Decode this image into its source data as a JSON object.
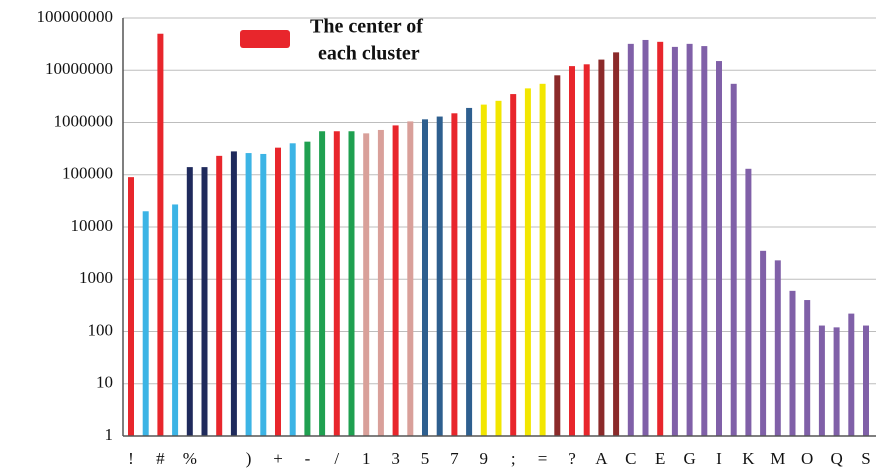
{
  "chart_data": {
    "type": "bar",
    "log_scale": true,
    "grid": true,
    "categories": [
      "!",
      null,
      "#",
      null,
      "%",
      null,
      null,
      null,
      ")",
      null,
      "+",
      null,
      "-",
      null,
      "/",
      null,
      "1",
      null,
      "3",
      null,
      "5",
      null,
      "7",
      null,
      "9",
      null,
      ";",
      null,
      "=",
      null,
      "?",
      null,
      "A",
      null,
      "C",
      null,
      "E",
      null,
      "G",
      null,
      "I",
      null,
      "K",
      null,
      "M",
      null,
      "O",
      null,
      "Q",
      null,
      "S"
    ],
    "values": [
      90000,
      20000,
      50000000,
      27000,
      140000,
      140000,
      230000,
      280000,
      260000,
      250000,
      330000,
      400000,
      430000,
      680000,
      680000,
      680000,
      620000,
      720000,
      880000,
      1050000,
      1150000,
      1300000,
      1500000,
      1900000,
      2200000,
      2600000,
      3500000,
      4500000,
      5500000,
      8000000,
      12000000,
      13000000,
      16000000,
      22000000,
      32000000,
      38000000,
      35000000,
      28000000,
      32000000,
      29000000,
      15000000,
      5500000,
      130000,
      3500,
      2300,
      600,
      400,
      130,
      120,
      220,
      130
    ],
    "colors": [
      "#e8262c",
      "#3cb4e5",
      "#e8262c",
      "#3cb4e5",
      "#1f2a5c",
      "#1f2a5c",
      "#e8262c",
      "#1f2a5c",
      "#3cb4e5",
      "#3cb4e5",
      "#e8262c",
      "#3cb4e5",
      "#1fa050",
      "#1fa050",
      "#e8262c",
      "#1fa050",
      "#d9a09a",
      "#d9a09a",
      "#e8262c",
      "#d9a09a",
      "#2e5f8f",
      "#2e5f8f",
      "#e8262c",
      "#2e5f8f",
      "#f2e600",
      "#f2e600",
      "#e8262c",
      "#f2e600",
      "#f2e600",
      "#8b2a2a",
      "#e8262c",
      "#e8262c",
      "#8b2a2a",
      "#8b2a2a",
      "#8060a8",
      "#8060a8",
      "#e8262c",
      "#8060a8",
      "#8060a8",
      "#8060a8",
      "#8060a8",
      "#8060a8",
      "#8060a8",
      "#8060a8",
      "#8060a8",
      "#8060a8",
      "#8060a8",
      "#8060a8",
      "#8060a8",
      "#8060a8",
      "#8060a8"
    ],
    "ylim": [
      1,
      100000000
    ],
    "yticks": [
      1,
      10,
      100,
      1000,
      10000,
      100000,
      1000000,
      10000000,
      100000000
    ],
    "legend": {
      "lines": [
        "The center of",
        "each cluster"
      ],
      "color": "#e8262c"
    }
  }
}
